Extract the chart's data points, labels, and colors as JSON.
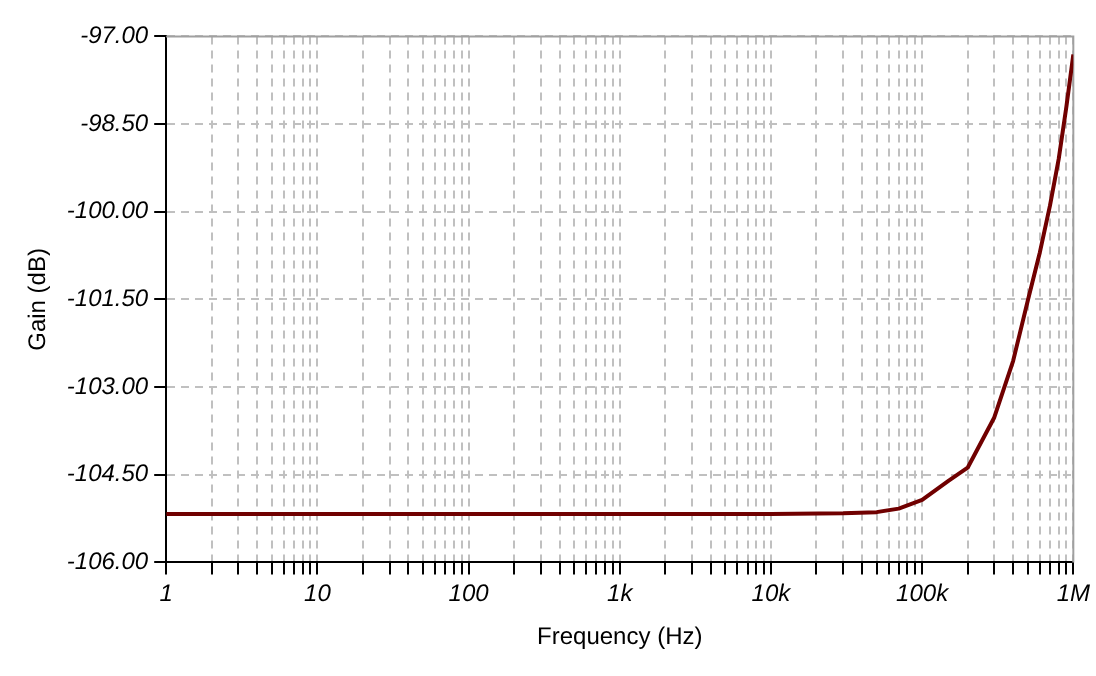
{
  "chart_data": {
    "type": "line",
    "xlabel": "Frequency (Hz)",
    "ylabel": "Gain (dB)",
    "log": "x",
    "grid": true,
    "legend": false,
    "marker": "none",
    "line_style": "solid",
    "xlim": [
      1,
      1000000
    ],
    "ylim": [
      -106,
      -97
    ],
    "xticks": [
      {
        "value": 1,
        "label": "1"
      },
      {
        "value": 2,
        "label": null
      },
      {
        "value": 3,
        "label": null
      },
      {
        "value": 4,
        "label": null
      },
      {
        "value": 5,
        "label": null
      },
      {
        "value": 6,
        "label": null
      },
      {
        "value": 7,
        "label": null
      },
      {
        "value": 8,
        "label": null
      },
      {
        "value": 9,
        "label": null
      },
      {
        "value": 10,
        "label": "10"
      },
      {
        "value": 20,
        "label": null
      },
      {
        "value": 30,
        "label": null
      },
      {
        "value": 40,
        "label": null
      },
      {
        "value": 50,
        "label": null
      },
      {
        "value": 60,
        "label": null
      },
      {
        "value": 70,
        "label": null
      },
      {
        "value": 80,
        "label": null
      },
      {
        "value": 90,
        "label": null
      },
      {
        "value": 100,
        "label": "100"
      },
      {
        "value": 200,
        "label": null
      },
      {
        "value": 300,
        "label": null
      },
      {
        "value": 400,
        "label": null
      },
      {
        "value": 500,
        "label": null
      },
      {
        "value": 600,
        "label": null
      },
      {
        "value": 700,
        "label": null
      },
      {
        "value": 800,
        "label": null
      },
      {
        "value": 900,
        "label": null
      },
      {
        "value": 1000,
        "label": "1k"
      },
      {
        "value": 2000,
        "label": null
      },
      {
        "value": 3000,
        "label": null
      },
      {
        "value": 4000,
        "label": null
      },
      {
        "value": 5000,
        "label": null
      },
      {
        "value": 6000,
        "label": null
      },
      {
        "value": 7000,
        "label": null
      },
      {
        "value": 8000,
        "label": null
      },
      {
        "value": 9000,
        "label": null
      },
      {
        "value": 10000,
        "label": "10k"
      },
      {
        "value": 20000,
        "label": null
      },
      {
        "value": 30000,
        "label": null
      },
      {
        "value": 40000,
        "label": null
      },
      {
        "value": 50000,
        "label": null
      },
      {
        "value": 60000,
        "label": null
      },
      {
        "value": 70000,
        "label": null
      },
      {
        "value": 80000,
        "label": null
      },
      {
        "value": 90000,
        "label": null
      },
      {
        "value": 100000,
        "label": "100k"
      },
      {
        "value": 200000,
        "label": null
      },
      {
        "value": 300000,
        "label": null
      },
      {
        "value": 400000,
        "label": null
      },
      {
        "value": 500000,
        "label": null
      },
      {
        "value": 600000,
        "label": null
      },
      {
        "value": 700000,
        "label": null
      },
      {
        "value": 800000,
        "label": null
      },
      {
        "value": 900000,
        "label": null
      },
      {
        "value": 1000000,
        "label": "1M"
      }
    ],
    "yticks": [
      {
        "value": -106,
        "label": "-106.00"
      },
      {
        "value": -104.5,
        "label": "-104.50"
      },
      {
        "value": -103,
        "label": "-103.00"
      },
      {
        "value": -101.5,
        "label": "-101.50"
      },
      {
        "value": -100,
        "label": "-100.00"
      },
      {
        "value": -98.5,
        "label": "-98.50"
      },
      {
        "value": -97,
        "label": "-97.00"
      }
    ],
    "series": [
      {
        "color": "#700000",
        "x": [
          1,
          10,
          100,
          1000,
          10000,
          30000,
          50000,
          70000,
          100000,
          150000,
          200000,
          300000,
          400000,
          500000,
          600000,
          700000,
          800000,
          900000,
          1000000
        ],
        "values": [
          -105.17,
          -105.17,
          -105.17,
          -105.17,
          -105.17,
          -105.16,
          -105.14,
          -105.08,
          -104.93,
          -104.6,
          -104.38,
          -103.52,
          -102.55,
          -101.52,
          -100.7,
          -99.9,
          -99.1,
          -98.2,
          -97.31
        ]
      }
    ]
  }
}
